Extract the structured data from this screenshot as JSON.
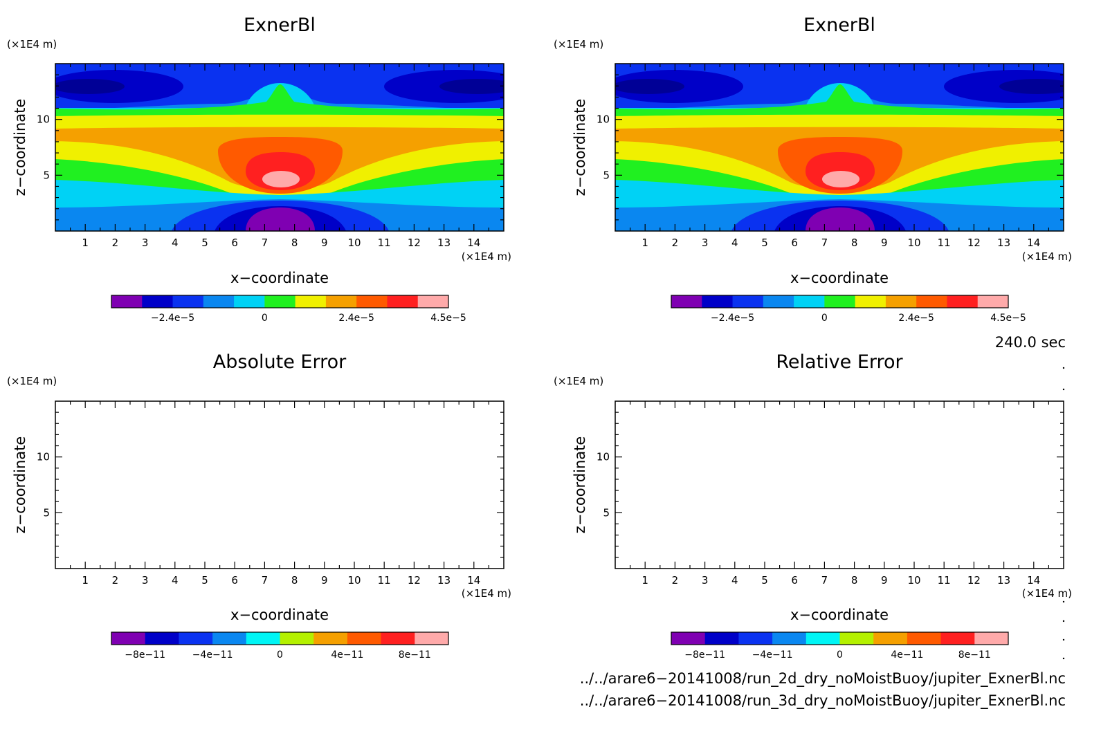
{
  "panels": [
    {
      "title": "ExnerBl",
      "kind": "field",
      "ylabel": "z−coordinate",
      "xlabel": "x−coordinate",
      "yunit": "(×1E4 m)",
      "xunit": "(×1E4 m)",
      "colorbar_labels": [
        "−2.4e−5",
        "0",
        "2.4e−5",
        "4.5e−5"
      ]
    },
    {
      "title": "ExnerBl",
      "kind": "field",
      "ylabel": "z−coordinate",
      "xlabel": "x−coordinate",
      "yunit": "(×1E4 m)",
      "xunit": "(×1E4 m)",
      "colorbar_labels": [
        "−2.4e−5",
        "0",
        "2.4e−5",
        "4.5e−5"
      ]
    },
    {
      "title": "Absolute Error",
      "kind": "empty",
      "ylabel": "z−coordinate",
      "xlabel": "x−coordinate",
      "yunit": "(×1E4 m)",
      "xunit": "(×1E4 m)",
      "colorbar_labels": [
        "−8e−11",
        "−4e−11",
        "0",
        "4e−11",
        "8e−11"
      ]
    },
    {
      "title": "Relative Error",
      "kind": "empty",
      "ylabel": "z−coordinate",
      "xlabel": "x−coordinate",
      "yunit": "(×1E4 m)",
      "xunit": "(×1E4 m)",
      "colorbar_labels": [
        "−8e−11",
        "−4e−11",
        "0",
        "4e−11",
        "8e−11"
      ]
    }
  ],
  "x_ticks": [
    "1",
    "2",
    "3",
    "4",
    "5",
    "6",
    "7",
    "8",
    "9",
    "10",
    "11",
    "12",
    "13",
    "14"
  ],
  "y_ticks": [
    "5",
    "10"
  ],
  "time_label": "240.0 sec",
  "files": [
    "../../arare6−20141008/run_2d_dry_noMoistBuoy/jupiter_ExnerBl.nc",
    "../../arare6−20141008/run_3d_dry_noMoistBuoy/jupiter_ExnerBl.nc"
  ],
  "chart_data": [
    {
      "type": "heatmap",
      "title": "ExnerBl",
      "xlabel": "x−coordinate (×1E4 m)",
      "ylabel": "z−coordinate (×1E4 m)",
      "xlim": [
        0,
        15
      ],
      "ylim": [
        0,
        15
      ],
      "colorbar": {
        "ticks": [
          "−2.4e−5",
          "0",
          "2.4e−5",
          "4.5e−5"
        ],
        "colors": [
          "#7f00b2",
          "#0000c8",
          "#0a32f0",
          "#0a87f0",
          "#00d2f5",
          "#20f020",
          "#f0f000",
          "#f5a000",
          "#ff5a00",
          "#ff2020",
          "#ffaaaa"
        ]
      },
      "structure": "warm maximum (~4.5e−5) centred at x≈7.5, z≈4.5; cold minima at x≈7.5, z≈1 and at upper corners z≈12.5"
    },
    {
      "type": "heatmap",
      "title": "ExnerBl",
      "xlabel": "x−coordinate (×1E4 m)",
      "ylabel": "z−coordinate (×1E4 m)",
      "xlim": [
        0,
        15
      ],
      "ylim": [
        0,
        15
      ],
      "colorbar": {
        "ticks": [
          "−2.4e−5",
          "0",
          "2.4e−5",
          "4.5e−5"
        ],
        "colors": [
          "#7f00b2",
          "#0000c8",
          "#0a32f0",
          "#0a87f0",
          "#00d2f5",
          "#20f020",
          "#f0f000",
          "#f5a000",
          "#ff5a00",
          "#ff2020",
          "#ffaaaa"
        ]
      },
      "structure": "identical to first panel"
    },
    {
      "type": "heatmap",
      "title": "Absolute Error",
      "xlabel": "x−coordinate (×1E4 m)",
      "ylabel": "z−coordinate (×1E4 m)",
      "xlim": [
        0,
        15
      ],
      "ylim": [
        0,
        15
      ],
      "colorbar": {
        "ticks": [
          "−8e−11",
          "−4e−11",
          "0",
          "4e−11",
          "8e−11"
        ],
        "colors": [
          "#7f00b2",
          "#0000c8",
          "#0a32f0",
          "#0a87f0",
          "#00f5f5",
          "#b4f000",
          "#f5a000",
          "#ff5a00",
          "#ff2020",
          "#ffaaaa"
        ]
      },
      "structure": "blank (no error)"
    },
    {
      "type": "heatmap",
      "title": "Relative Error",
      "xlabel": "x−coordinate (×1E4 m)",
      "ylabel": "z−coordinate (×1E4 m)",
      "xlim": [
        0,
        15
      ],
      "ylim": [
        0,
        15
      ],
      "colorbar": {
        "ticks": [
          "−8e−11",
          "−4e−11",
          "0",
          "4e−11",
          "8e−11"
        ],
        "colors": [
          "#7f00b2",
          "#0000c8",
          "#0a32f0",
          "#0a87f0",
          "#00f5f5",
          "#b4f000",
          "#f5a000",
          "#ff5a00",
          "#ff2020",
          "#ffaaaa"
        ]
      },
      "structure": "blank (no error)"
    }
  ]
}
